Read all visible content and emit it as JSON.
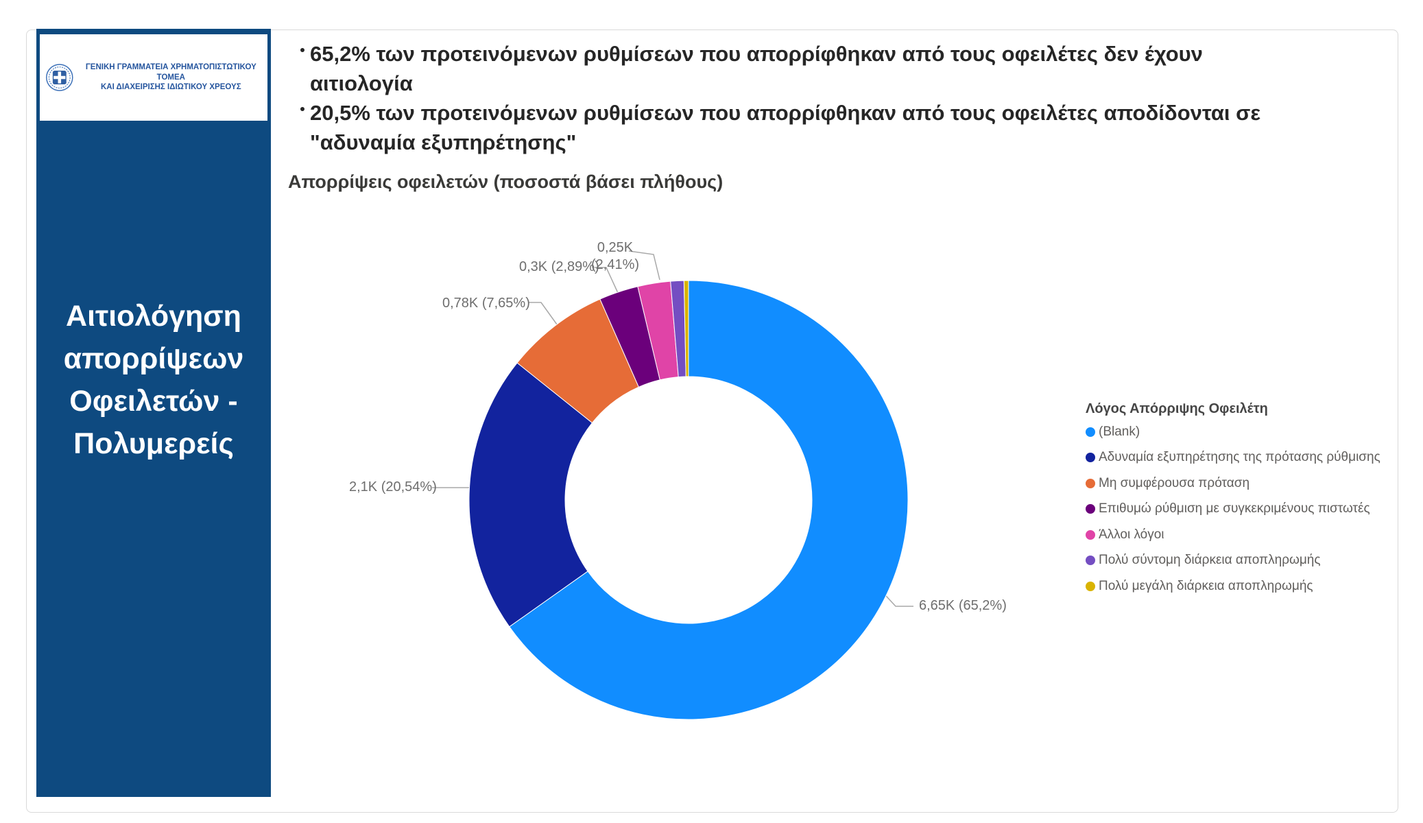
{
  "sidebar": {
    "logo_line1": "ΓΕΝΙΚΗ ΓΡΑΜΜΑΤΕΙΑ ΧΡΗΜΑΤΟΠΙΣΤΩΤΙΚΟΥ ΤΟΜΕΑ",
    "logo_line2": "ΚΑΙ ΔΙΑΧΕΙΡΙΣΗΣ ΙΔΙΩΤΙΚΟΥ ΧΡΕΟΥΣ",
    "title": "Αιτιολόγηση απορρίψεων Οφειλετών - Πολυμερείς",
    "bg_color": "#0E4A80"
  },
  "highlights": {
    "bullet1_line1": "65,2% των προτεινόμενων ρυθμίσεων που απορρίφθηκαν από τους οφειλέτες δεν έχουν",
    "bullet1_line2": "αιτιολογία",
    "bullet2_line1": "20,5% των προτεινόμενων ρυθμίσεων που απορρίφθηκαν από τους οφειλέτες αποδίδονται σε",
    "bullet2_line2": "\"αδυναμία εξυπηρέτησης\""
  },
  "chart_data": {
    "type": "pie",
    "subtype": "donut",
    "title": "Απορρίψεις οφειλετών (ποσοστά βάσει πλήθους)",
    "legend_title": "Λόγος Απόρριψης Οφειλέτη",
    "legend_position": "right",
    "start_angle_deg": 0,
    "direction": "clockwise",
    "series": [
      {
        "name": "(Blank)",
        "value_k": 6.65,
        "pct": 65.2,
        "label": "6,65K (65,2%)",
        "color": "#118DFF"
      },
      {
        "name": "Αδυναμία εξυπηρέτησης της πρότασης ρύθμισης",
        "value_k": 2.1,
        "pct": 20.54,
        "label": "2,1K (20,54%)",
        "color": "#12239E"
      },
      {
        "name": "Μη συμφέρουσα πρόταση",
        "value_k": 0.78,
        "pct": 7.65,
        "label": "0,78K (7,65%)",
        "color": "#E66C37"
      },
      {
        "name": "Επιθυμώ ρύθμιση με συγκεκριμένους πιστωτές",
        "value_k": 0.3,
        "pct": 2.89,
        "label": "0,3K (2,89%)",
        "color": "#6B007B"
      },
      {
        "name": "Άλλοι λόγοι",
        "value_k": 0.25,
        "pct": 2.41,
        "label": "0,25K (2,41%)",
        "label_l1": "0,25K",
        "label_l2": "(2,41%)",
        "color": "#E044A7"
      },
      {
        "name": "Πολύ σύντομη διάρκεια αποπληρωμής",
        "value_k": 0.1,
        "pct": 0.98,
        "label": "",
        "color": "#744EC2"
      },
      {
        "name": "Πολύ μεγάλη διάρκεια αποπληρωμής",
        "value_k": 0.03,
        "pct": 0.33,
        "label": "",
        "color": "#D9B300"
      }
    ]
  }
}
